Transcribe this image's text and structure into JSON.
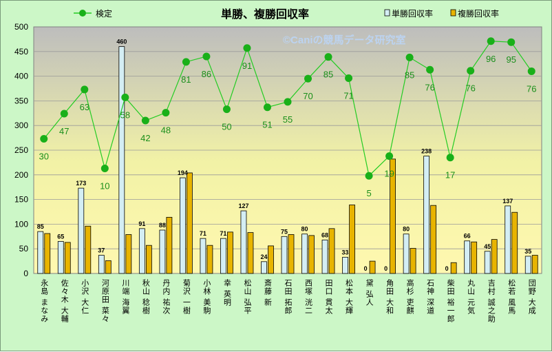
{
  "chart_data": {
    "type": "bar+line",
    "title": "単勝、複勝回収率",
    "watermark": "©Caniの競馬データ研究室",
    "ylim": [
      0,
      500
    ],
    "yticks": [
      0,
      50,
      100,
      150,
      200,
      250,
      300,
      350,
      400,
      450,
      500
    ],
    "categories": [
      "永島 まなみ",
      "佐々木 大輔",
      "小沢 大仁",
      "河原田 菜々",
      "川端 海翼",
      "秋山 稔樹",
      "丹内 祐次",
      "菊沢 一樹",
      "小林 美駒",
      "幸 英明",
      "松山 弘平",
      "斎藤 新",
      "石田 拓郎",
      "西塚 洸二",
      "田口 貫太",
      "松本 大輝",
      "黛 弘人",
      "角田 大和",
      "高杉 吏麒",
      "石神 深道",
      "柴田 裕一郎",
      "丸山 元気",
      "吉村 誠之助",
      "松若 風馬",
      "団野 大成"
    ],
    "series": [
      {
        "name": "単勝回収率",
        "kind": "bar",
        "color": "#d4eef4",
        "values": [
          85,
          65,
          173,
          37,
          460,
          91,
          88,
          194,
          71,
          71,
          127,
          24,
          75,
          80,
          68,
          33,
          0,
          0,
          80,
          238,
          0,
          66,
          45,
          137,
          35
        ]
      },
      {
        "name": "複勝回収率",
        "kind": "bar",
        "color": "#e8b400",
        "values": [
          81,
          63,
          96,
          26,
          79,
          57,
          114,
          204,
          57,
          84,
          83,
          56,
          79,
          77,
          91,
          139,
          25,
          232,
          51,
          138,
          22,
          64,
          69,
          124,
          37
        ]
      },
      {
        "name": "検定",
        "kind": "line",
        "color": "#22cc22",
        "values": [
          273,
          324,
          373,
          213,
          357,
          310,
          326,
          429,
          440,
          333,
          457,
          337,
          348,
          395,
          439,
          396,
          198,
          238,
          438,
          413,
          235,
          411,
          471,
          469,
          410
        ],
        "labels": [
          30,
          47,
          63,
          10,
          58,
          42,
          48,
          81,
          86,
          50,
          91,
          51,
          55,
          70,
          85,
          71,
          5,
          19,
          85,
          76,
          17,
          76,
          96,
          95,
          76
        ]
      }
    ],
    "legend": {
      "position": "top",
      "items": [
        "検定",
        "単勝回収率",
        "複勝回収率"
      ]
    }
  }
}
